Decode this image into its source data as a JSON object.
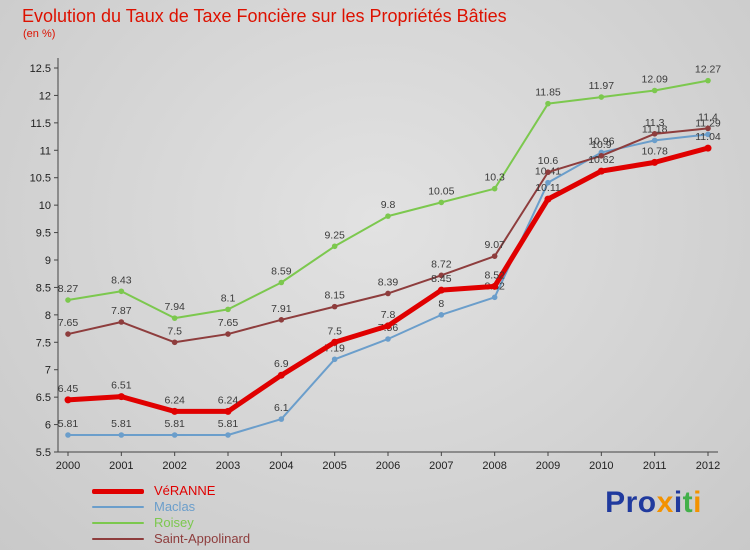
{
  "title": "Evolution du Taux de Taxe Foncière sur les Propriétés Bâties",
  "subtitle": "(en %)",
  "colors": {
    "title": "#dd1100",
    "axis": "#444444",
    "tick_text": "#222222",
    "data_label": "#3b3b3b",
    "background": "#cccccc"
  },
  "chart_data": {
    "type": "line",
    "title": "Evolution du Taux de Taxe Foncière sur les Propriétés Bâties",
    "xlabel": "",
    "ylabel": "en %",
    "x": [
      "2000",
      "2001",
      "2002",
      "2003",
      "2004",
      "2005",
      "2006",
      "2007",
      "2008",
      "2009",
      "2010",
      "2011",
      "2012"
    ],
    "ylim": [
      5.5,
      12.5
    ],
    "ytick_step": 0.5,
    "grid": false,
    "legend_position": "bottom-left",
    "series": [
      {
        "name": "VéRANNE",
        "color": "#e00000",
        "width": 5,
        "values": [
          6.45,
          6.51,
          6.24,
          6.24,
          6.9,
          7.5,
          7.8,
          8.45,
          8.52,
          10.11,
          10.62,
          10.78,
          11.04
        ]
      },
      {
        "name": "Maclas",
        "color": "#6b9ecb",
        "width": 2,
        "values": [
          5.81,
          5.81,
          5.81,
          5.81,
          6.1,
          7.19,
          7.56,
          8,
          8.32,
          10.41,
          10.96,
          11.18,
          11.29
        ]
      },
      {
        "name": "Roisey",
        "color": "#7cc84e",
        "width": 2,
        "values": [
          8.27,
          8.43,
          7.94,
          8.1,
          8.59,
          9.25,
          9.8,
          10.05,
          10.3,
          11.85,
          11.97,
          12.09,
          12.27
        ]
      },
      {
        "name": "Saint-Appolinard",
        "color": "#8e3d3d",
        "width": 2,
        "values": [
          7.65,
          7.87,
          7.5,
          7.65,
          7.91,
          8.15,
          8.39,
          8.72,
          9.07,
          10.6,
          10.9,
          11.3,
          11.4
        ]
      }
    ]
  },
  "logo": {
    "text": "Proxiti",
    "letters": [
      {
        "ch": "P",
        "color": "#203a9e"
      },
      {
        "ch": "r",
        "color": "#203a9e"
      },
      {
        "ch": "o",
        "color": "#203a9e"
      },
      {
        "ch": "x",
        "color": "#f39200"
      },
      {
        "ch": "i",
        "color": "#203a9e"
      },
      {
        "ch": "t",
        "color": "#43b04a"
      },
      {
        "ch": "i",
        "color": "#f39200"
      }
    ]
  }
}
